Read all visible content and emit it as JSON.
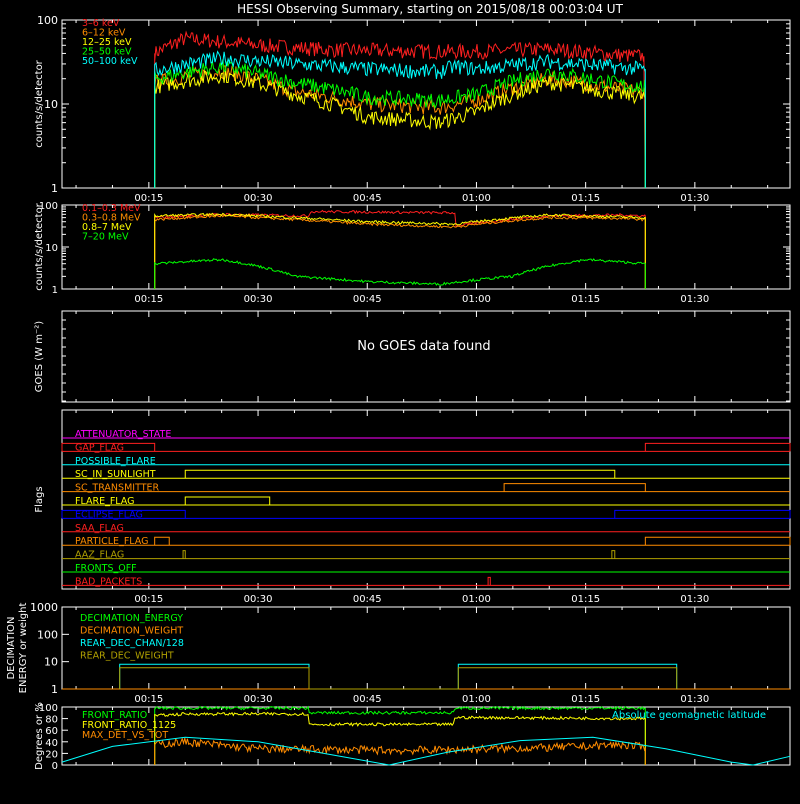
{
  "title": "HESSI Observing Summary, starting on 2015/08/18 00:03:04 UT",
  "colors": {
    "background": "#000000",
    "axes": "#ffffff",
    "red": "#ff2020",
    "orange": "#ff8c00",
    "yellow": "#ffff00",
    "green": "#00ff00",
    "cyan": "#00ffff",
    "blue": "#0000ff",
    "magenta": "#ff00ff",
    "olive": "#b0a000"
  },
  "chart_data": [
    {
      "type": "line",
      "panel": "lightcurves_low",
      "ylabel": "counts/s/detector",
      "yscale": "log",
      "ylim": [
        1,
        100
      ],
      "yticks": [
        "1",
        "10",
        "100"
      ],
      "x_ticks": [
        "00:15",
        "00:30",
        "00:45",
        "01:00",
        "01:15",
        "01:30"
      ],
      "x_range_min": [
        3.07,
        103.07
      ],
      "data_range_min": [
        15.8,
        83.2
      ],
      "series": [
        {
          "name": "3–6 keV",
          "color": "#ff2020",
          "points": [
            [
              15.8,
              1
            ],
            [
              15.8,
              40
            ],
            [
              20,
              60
            ],
            [
              30,
              50
            ],
            [
              40,
              44
            ],
            [
              55,
              42
            ],
            [
              60,
              42
            ],
            [
              70,
              45
            ],
            [
              80,
              38
            ],
            [
              83,
              37
            ],
            [
              83.2,
              1
            ]
          ]
        },
        {
          "name": "6–12 keV",
          "color": "#ff8c00",
          "points": [
            [
              15.8,
              1
            ],
            [
              15.8,
              18
            ],
            [
              25,
              25
            ],
            [
              35,
              14
            ],
            [
              45,
              10
            ],
            [
              55,
              9
            ],
            [
              60,
              11
            ],
            [
              70,
              20
            ],
            [
              80,
              15
            ],
            [
              83.2,
              14
            ],
            [
              83.2,
              1
            ]
          ]
        },
        {
          "name": "12–25 keV",
          "color": "#ffff00",
          "points": [
            [
              15.8,
              1
            ],
            [
              15.8,
              16
            ],
            [
              25,
              22
            ],
            [
              35,
              13
            ],
            [
              45,
              7
            ],
            [
              55,
              6
            ],
            [
              60,
              8
            ],
            [
              70,
              18
            ],
            [
              80,
              13
            ],
            [
              83.2,
              12
            ],
            [
              83.2,
              1
            ]
          ]
        },
        {
          "name": "25–50 keV",
          "color": "#00ff00",
          "points": [
            [
              15.8,
              1
            ],
            [
              15.8,
              20
            ],
            [
              25,
              28
            ],
            [
              35,
              18
            ],
            [
              45,
              12
            ],
            [
              55,
              11
            ],
            [
              60,
              13
            ],
            [
              70,
              24
            ],
            [
              80,
              17
            ],
            [
              83.2,
              16
            ],
            [
              83.2,
              1
            ]
          ]
        },
        {
          "name": "50–100 keV",
          "color": "#00ffff",
          "points": [
            [
              15.8,
              1
            ],
            [
              15.8,
              25
            ],
            [
              25,
              35
            ],
            [
              35,
              30
            ],
            [
              45,
              26
            ],
            [
              55,
              24
            ],
            [
              57,
              28
            ],
            [
              60,
              26
            ],
            [
              70,
              32
            ],
            [
              80,
              27
            ],
            [
              83.2,
              26
            ],
            [
              83.2,
              1
            ]
          ]
        }
      ]
    },
    {
      "type": "line",
      "panel": "lightcurves_high",
      "ylabel": "counts/s/detector",
      "yscale": "log",
      "ylim": [
        1,
        100
      ],
      "yticks": [
        "1",
        "10",
        "100"
      ],
      "x_ticks": [
        "00:15",
        "00:30",
        "00:45",
        "01:00",
        "01:15",
        "01:30"
      ],
      "series": [
        {
          "name": "0.1–0.3 MeV",
          "color": "#ff2020",
          "points": [
            [
              15.8,
              1
            ],
            [
              15.8,
              50
            ],
            [
              25,
              60
            ],
            [
              37,
              55
            ],
            [
              37.2,
              70
            ],
            [
              57,
              65
            ],
            [
              57.2,
              32
            ],
            [
              70,
              55
            ],
            [
              80,
              58
            ],
            [
              83.2,
              55
            ],
            [
              83.2,
              1
            ]
          ]
        },
        {
          "name": "0.3–0.8 MeV",
          "color": "#ff8c00",
          "points": [
            [
              15.8,
              1
            ],
            [
              15.8,
              45
            ],
            [
              25,
              55
            ],
            [
              45,
              35
            ],
            [
              57,
              30
            ],
            [
              70,
              50
            ],
            [
              80,
              48
            ],
            [
              83.2,
              45
            ],
            [
              83.2,
              1
            ]
          ]
        },
        {
          "name": "0.8–7 MeV",
          "color": "#ffff00",
          "points": [
            [
              15.8,
              1
            ],
            [
              15.8,
              55
            ],
            [
              25,
              60
            ],
            [
              45,
              40
            ],
            [
              57,
              35
            ],
            [
              70,
              58
            ],
            [
              80,
              52
            ],
            [
              83.2,
              50
            ],
            [
              83.2,
              1
            ]
          ]
        },
        {
          "name": "7–20 MeV",
          "color": "#00ff00",
          "points": [
            [
              15.8,
              1
            ],
            [
              15.8,
              4
            ],
            [
              25,
              5
            ],
            [
              35,
              2
            ],
            [
              45,
              1.5
            ],
            [
              55,
              1.3
            ],
            [
              65,
              2
            ],
            [
              75,
              5
            ],
            [
              83.2,
              4
            ],
            [
              83.2,
              1
            ]
          ]
        }
      ]
    },
    {
      "type": "line",
      "panel": "goes",
      "ylabel": "GOES (W m⁻²)",
      "message": "No GOES data found"
    },
    {
      "type": "line",
      "panel": "flags",
      "ylabel": "Flags",
      "x_ticks": [
        "00:15",
        "00:30",
        "00:45",
        "01:00",
        "01:15",
        "01:30"
      ],
      "flags": [
        {
          "name": "ATTENUATOR_STATE",
          "color": "#ff00ff",
          "segments": []
        },
        {
          "name": "GAP_FLAG",
          "color": "#ff2020",
          "segments": [
            [
              3.07,
              15.8
            ],
            [
              83.2,
              103.07
            ]
          ]
        },
        {
          "name": "POSSIBLE_FLARE",
          "color": "#00ffff",
          "segments": []
        },
        {
          "name": "SC_IN_SUNLIGHT",
          "color": "#ffff00",
          "segments": [
            [
              20,
              79
            ]
          ]
        },
        {
          "name": "SC_TRANSMITTER",
          "color": "#ff8c00",
          "segments": [
            [
              63.8,
              83.2
            ]
          ]
        },
        {
          "name": "FLARE_FLAG",
          "color": "#ffff00",
          "segments": [
            [
              20,
              31.6
            ]
          ]
        },
        {
          "name": "ECLIPSE_FLAG",
          "color": "#0000ff",
          "segments": [
            [
              3.07,
              20
            ],
            [
              79,
              103.07
            ]
          ]
        },
        {
          "name": "SAA_FLAG",
          "color": "#ff2020",
          "segments": []
        },
        {
          "name": "PARTICLE_FLAG",
          "color": "#ff8c00",
          "segments": [
            [
              15.8,
              17.8
            ],
            [
              83.2,
              103.07
            ]
          ]
        },
        {
          "name": "AAZ_FLAG",
          "color": "#b0a000",
          "segments": [
            [
              19.7,
              20
            ],
            [
              78.6,
              79
            ]
          ]
        },
        {
          "name": "FRONTS_OFF",
          "color": "#00ff00",
          "segments": []
        },
        {
          "name": "BAD_PACKETS",
          "color": "#ff2020",
          "segments": [
            [
              61.6,
              61.9
            ]
          ]
        }
      ]
    },
    {
      "type": "line",
      "panel": "decimation",
      "ylabel": "DECIMATION ENERGY or weight",
      "yscale": "log",
      "ylim": [
        1,
        1000
      ],
      "yticks": [
        "1",
        "10",
        "100",
        "1000"
      ],
      "series": [
        {
          "name": "DECIMATION_ENERGY",
          "color": "#00ff00",
          "points": []
        },
        {
          "name": "DECIMATION_WEIGHT",
          "color": "#ff8c00",
          "points": [
            [
              3.07,
              1
            ],
            [
              103.07,
              1
            ]
          ]
        },
        {
          "name": "REAR_DEC_CHAN/128",
          "color": "#00ffff",
          "points": [
            [
              11.0,
              1
            ],
            [
              11.0,
              8
            ],
            [
              37,
              8
            ],
            [
              37,
              1
            ],
            [
              57.5,
              1
            ],
            [
              57.5,
              8
            ],
            [
              87.5,
              8
            ],
            [
              87.5,
              1
            ]
          ]
        },
        {
          "name": "REAR_DEC_WEIGHT",
          "color": "#b0a000",
          "points": [
            [
              11.0,
              1
            ],
            [
              11.0,
              6
            ],
            [
              37,
              6
            ],
            [
              37,
              1
            ],
            [
              57.5,
              1
            ],
            [
              57.5,
              6
            ],
            [
              87.5,
              6
            ],
            [
              87.5,
              1
            ]
          ]
        }
      ]
    },
    {
      "type": "line",
      "panel": "ratios",
      "ylabel": "Degrees or %",
      "ylim": [
        0,
        100
      ],
      "yticks": [
        "0",
        "20",
        "40",
        "60",
        "80",
        "100"
      ],
      "annotation": "Absolute geomagnetic latitude",
      "series": [
        {
          "name": "FRONT_RATIO",
          "color": "#00ff00",
          "points": [
            [
              15.8,
              0
            ],
            [
              15.8,
              98
            ],
            [
              37,
              98
            ],
            [
              37,
              90
            ],
            [
              57,
              90
            ],
            [
              57,
              98
            ],
            [
              83.2,
              98
            ],
            [
              83.2,
              0
            ]
          ]
        },
        {
          "name": "FRONT_RATIO_1125",
          "color": "#ffff00",
          "points": [
            [
              15.8,
              0
            ],
            [
              15.8,
              85
            ],
            [
              20,
              88
            ],
            [
              37,
              88
            ],
            [
              37,
              70
            ],
            [
              57,
              70
            ],
            [
              57,
              82
            ],
            [
              83.2,
              80
            ],
            [
              83.2,
              0
            ]
          ]
        },
        {
          "name": "MAX_DET_VS_TOT",
          "color": "#ff8c00",
          "points": [
            [
              15.8,
              0
            ],
            [
              15.8,
              35
            ],
            [
              20,
              40
            ],
            [
              30,
              28
            ],
            [
              50,
              25
            ],
            [
              70,
              30
            ],
            [
              80,
              35
            ],
            [
              83.2,
              30
            ],
            [
              83.2,
              0
            ]
          ]
        },
        {
          "name": "Absolute geomagnetic latitude",
          "color": "#00ffff",
          "points": [
            [
              3.07,
              5
            ],
            [
              10,
              32
            ],
            [
              20,
              48
            ],
            [
              30,
              40
            ],
            [
              40,
              18
            ],
            [
              48,
              0
            ],
            [
              56,
              22
            ],
            [
              66,
              42
            ],
            [
              76,
              48
            ],
            [
              86,
              28
            ],
            [
              95,
              5
            ],
            [
              98,
              0
            ],
            [
              103.07,
              15
            ]
          ]
        }
      ]
    }
  ]
}
